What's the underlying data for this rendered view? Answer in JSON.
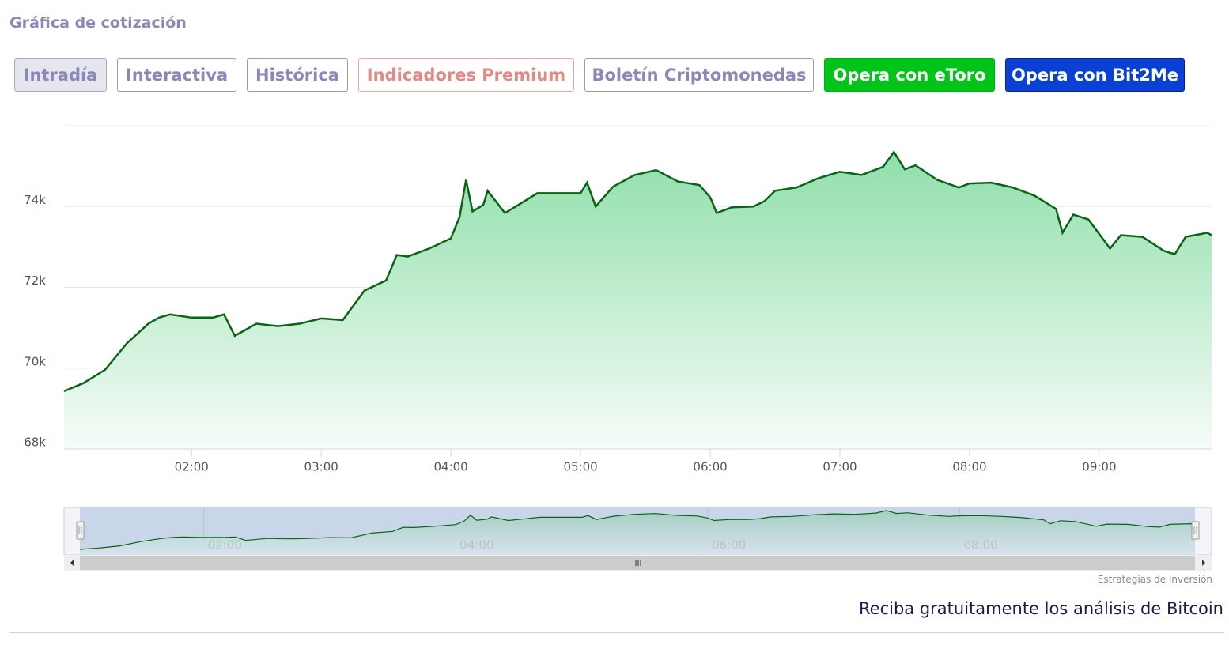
{
  "header": {
    "title": "Gráfica de cotización"
  },
  "buttons": [
    "Intradía",
    "Interactiva",
    "Histórica",
    "Indicadores Premium",
    "Boletín Criptomonedas",
    "Opera con eToro",
    "Opera con Bit2Me"
  ],
  "chart_data": {
    "type": "area",
    "color": "#0a6414",
    "x": [
      "01:01",
      "01:10",
      "01:20",
      "01:30",
      "01:40",
      "01:45",
      "01:50",
      "02:00",
      "02:10",
      "02:15",
      "02:20",
      "02:30",
      "02:40",
      "02:50",
      "03:00",
      "03:10",
      "03:20",
      "03:30",
      "03:35",
      "03:40",
      "03:50",
      "04:00",
      "04:04",
      "04:07",
      "04:10",
      "04:15",
      "04:17",
      "04:25",
      "04:30",
      "04:40",
      "04:50",
      "05:00",
      "05:03",
      "05:07",
      "05:15",
      "05:25",
      "05:35",
      "05:45",
      "05:55",
      "06:00",
      "06:03",
      "06:10",
      "06:20",
      "06:25",
      "06:30",
      "06:40",
      "06:50",
      "07:00",
      "07:10",
      "07:20",
      "07:25",
      "07:30",
      "07:35",
      "07:45",
      "07:55",
      "08:00",
      "08:10",
      "08:20",
      "08:30",
      "08:40",
      "08:43",
      "08:48",
      "08:55",
      "09:05",
      "09:10",
      "09:20",
      "09:30",
      "09:35",
      "09:40",
      "09:50",
      "09:52"
    ],
    "values": [
      69430,
      69630,
      69960,
      70610,
      71100,
      71250,
      71330,
      71250,
      71250,
      71330,
      70800,
      71100,
      71040,
      71100,
      71230,
      71190,
      71920,
      72170,
      72800,
      72760,
      72960,
      73210,
      73740,
      74660,
      73880,
      74040,
      74390,
      73840,
      74000,
      74330,
      74330,
      74330,
      74590,
      74000,
      74490,
      74780,
      74900,
      74620,
      74530,
      74230,
      73840,
      73980,
      74000,
      74130,
      74390,
      74470,
      74700,
      74860,
      74780,
      74980,
      75350,
      74920,
      75020,
      74660,
      74470,
      74570,
      74590,
      74470,
      74270,
      73940,
      73350,
      73800,
      73680,
      72960,
      73290,
      73250,
      72900,
      72820,
      73250,
      73350,
      73290
    ],
    "xlim": [
      "01:01",
      "09:52"
    ],
    "xticks": [
      "02:00",
      "03:00",
      "04:00",
      "05:00",
      "06:00",
      "07:00",
      "08:00",
      "09:00"
    ],
    "ylim": [
      68000,
      76000
    ],
    "yticks": [
      {
        "value": 68000,
        "label": "68k"
      },
      {
        "value": 70000,
        "label": "70k"
      },
      {
        "value": 72000,
        "label": "72k"
      },
      {
        "value": 74000,
        "label": "74k"
      }
    ],
    "grid": true,
    "navigator": {
      "xticks": [
        "02:00",
        "04:00",
        "06:00",
        "08:00"
      ]
    }
  },
  "credit": "Estrategias de Inversión",
  "cta": "Reciba gratuitamente los análisis de Bitcoin"
}
